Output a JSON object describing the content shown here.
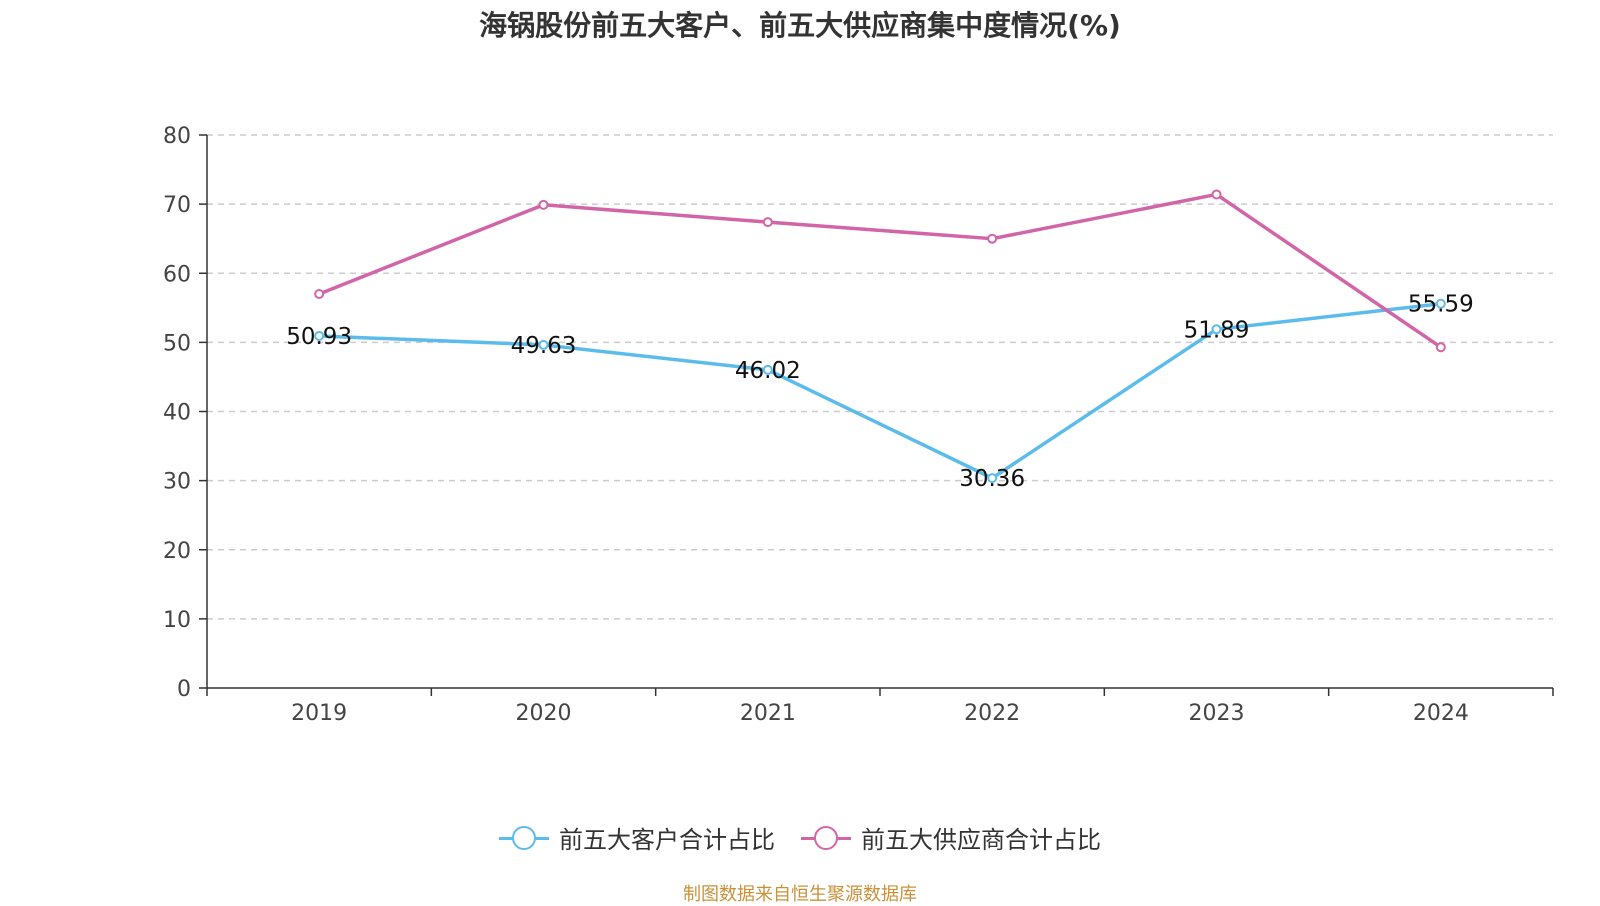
{
  "chart_data": {
    "type": "line",
    "title": "海锅股份前五大客户、前五大供应商集中度情况(%)",
    "categories": [
      "2019",
      "2020",
      "2021",
      "2022",
      "2023",
      "2024"
    ],
    "yticks": [
      "0",
      "10",
      "20",
      "30",
      "40",
      "50",
      "60",
      "70",
      "80"
    ],
    "ylim": [
      0,
      80
    ],
    "grid": true,
    "legend_position": "bottom-center",
    "series": [
      {
        "name": "前五大客户合计占比",
        "color": "#5bbcec",
        "values": [
          50.93,
          49.63,
          46.02,
          30.36,
          51.89,
          55.59
        ],
        "labels": [
          "50.93",
          "49.63",
          "46.02",
          "30.36",
          "51.89",
          "55.59"
        ]
      },
      {
        "name": "前五大供应商合计占比",
        "color": "#d264a8",
        "values": [
          57.0,
          69.9,
          67.4,
          65.0,
          71.4,
          49.3
        ]
      }
    ]
  },
  "source_text": "制图数据来自恒生聚源数据库"
}
